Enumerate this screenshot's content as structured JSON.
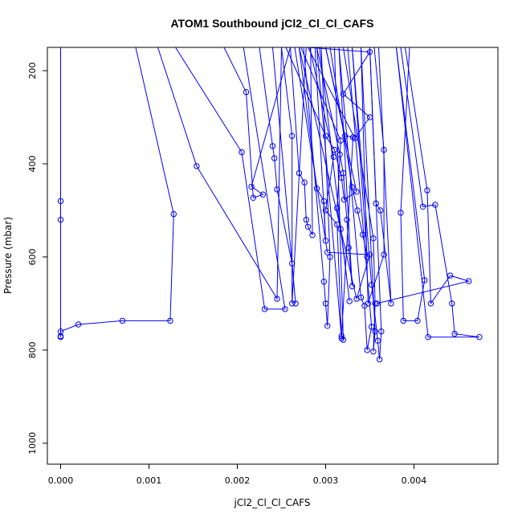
{
  "chart_data": {
    "type": "scatter",
    "title": "ATOM1 Southbound jCl2_Cl_Cl_CAFS",
    "xlabel": "jCl2_Cl_Cl_CAFS",
    "ylabel": "Pressure (mbar)",
    "xlim": [
      -0.00015,
      0.00495
    ],
    "ylim": [
      1045,
      150
    ],
    "y_reversed": true,
    "grid": false,
    "legend": "none",
    "x_ticks": [
      0,
      0.001,
      0.002,
      0.003,
      0.004
    ],
    "x_tick_labels": [
      "0.000",
      "0.001",
      "0.002",
      "0.003",
      "0.004"
    ],
    "y_ticks": [
      200,
      400,
      600,
      800,
      1000
    ],
    "y_tick_labels": [
      "200",
      "400",
      "600",
      "800",
      "1000"
    ],
    "series_color": "#0000ff",
    "series": [
      {
        "values": [
          [
            0.0,
            150
          ],
          [
            0.0,
            770
          ],
          [
            0.0,
            760
          ],
          [
            0.0002,
            745
          ],
          [
            0.0007,
            737
          ],
          [
            0.00124,
            737
          ],
          [
            0.00128,
            508
          ],
          [
            0.00085,
            150
          ]
        ]
      },
      {
        "values": [
          [
            0.0,
            150
          ],
          [
            0.0,
            480
          ],
          [
            0.0,
            520
          ],
          [
            0.0,
            772
          ]
        ]
      },
      {
        "values": [
          [
            0.0011,
            150
          ],
          [
            0.00154,
            405
          ],
          [
            0.00245,
            690
          ],
          [
            0.0025,
            150
          ]
        ]
      },
      {
        "values": [
          [
            0.0013,
            150
          ],
          [
            0.00205,
            375
          ],
          [
            0.00231,
            712
          ],
          [
            0.00254,
            712
          ],
          [
            0.00207,
            150
          ]
        ]
      },
      {
        "values": [
          [
            0.00185,
            150
          ],
          [
            0.0021,
            246
          ],
          [
            0.00218,
            473
          ],
          [
            0.00229,
            466
          ],
          [
            0.00216,
            449
          ],
          [
            0.0026,
            150
          ]
        ]
      },
      {
        "values": [
          [
            0.00225,
            150
          ],
          [
            0.0024,
            362
          ],
          [
            0.00242,
            388
          ],
          [
            0.00245,
            455
          ],
          [
            0.00262,
            614
          ],
          [
            0.00266,
            700
          ],
          [
            0.0024,
            150
          ]
        ]
      },
      {
        "values": [
          [
            0.0025,
            150
          ],
          [
            0.00262,
            340
          ],
          [
            0.00262,
            700
          ],
          [
            0.00278,
            150
          ]
        ]
      },
      {
        "values": [
          [
            0.0026,
            150
          ],
          [
            0.0027,
            420
          ],
          [
            0.00276,
            440
          ],
          [
            0.00278,
            520
          ],
          [
            0.0028,
            535
          ],
          [
            0.00285,
            553
          ],
          [
            0.00283,
            150
          ]
        ]
      },
      {
        "values": [
          [
            0.0027,
            150
          ],
          [
            0.0029,
            453
          ],
          [
            0.00298,
            480
          ],
          [
            0.003,
            565
          ],
          [
            0.00288,
            150
          ]
        ]
      },
      {
        "values": [
          [
            0.00255,
            150
          ],
          [
            0.003,
            340
          ],
          [
            0.0031,
            370
          ],
          [
            0.00318,
            430
          ],
          [
            0.00321,
            477
          ],
          [
            0.00335,
            460
          ],
          [
            0.003,
            150
          ]
        ]
      },
      {
        "values": [
          [
            0.00275,
            150
          ],
          [
            0.00298,
            653
          ],
          [
            0.003,
            700
          ],
          [
            0.00302,
            748
          ],
          [
            0.00305,
            600
          ],
          [
            0.00295,
            150
          ]
        ]
      },
      {
        "values": [
          [
            0.0029,
            150
          ],
          [
            0.00316,
            380
          ],
          [
            0.0032,
            420
          ],
          [
            0.00324,
            520
          ],
          [
            0.00326,
            580
          ],
          [
            0.0033,
            663
          ],
          [
            0.00315,
            150
          ]
        ]
      },
      {
        "values": [
          [
            0.003,
            150
          ],
          [
            0.00322,
            340
          ],
          [
            0.00331,
            343
          ],
          [
            0.00318,
            770
          ],
          [
            0.0032,
            778
          ],
          [
            0.0031,
            150
          ]
        ]
      },
      {
        "values": [
          [
            0.00305,
            150
          ],
          [
            0.0033,
            450
          ],
          [
            0.00336,
            500
          ],
          [
            0.00342,
            552
          ],
          [
            0.00347,
            600
          ],
          [
            0.0033,
            150
          ]
        ]
      },
      {
        "values": [
          [
            0.00315,
            150
          ],
          [
            0.0034,
            687
          ],
          [
            0.00344,
            705
          ],
          [
            0.00347,
            800
          ],
          [
            0.00352,
            750
          ],
          [
            0.00325,
            150
          ]
        ]
      },
      {
        "values": [
          [
            0.0032,
            150
          ],
          [
            0.00354,
            560
          ],
          [
            0.00356,
            700
          ],
          [
            0.00354,
            803
          ],
          [
            0.00356,
            760
          ],
          [
            0.0034,
            150
          ]
        ]
      },
      {
        "values": [
          [
            0.0033,
            150
          ],
          [
            0.00352,
            660
          ],
          [
            0.00359,
            780
          ],
          [
            0.00361,
            820
          ],
          [
            0.00363,
            760
          ],
          [
            0.0035,
            150
          ]
        ]
      },
      {
        "values": [
          [
            0.0035,
            150
          ],
          [
            0.00357,
            485
          ],
          [
            0.00362,
            500
          ],
          [
            0.00374,
            700
          ],
          [
            0.0036,
            150
          ]
        ]
      },
      {
        "values": [
          [
            0.00355,
            150
          ],
          [
            0.00366,
            370
          ],
          [
            0.00366,
            595
          ],
          [
            0.00348,
            700
          ],
          [
            0.0034,
            150
          ]
        ]
      },
      {
        "values": [
          [
            0.00395,
            150
          ],
          [
            0.00385,
            505
          ],
          [
            0.00388,
            737
          ],
          [
            0.00404,
            737
          ],
          [
            0.00412,
            650
          ],
          [
            0.0038,
            150
          ]
        ]
      },
      {
        "values": [
          [
            0.0039,
            150
          ],
          [
            0.00415,
            457
          ],
          [
            0.00419,
            700
          ],
          [
            0.00441,
            640
          ],
          [
            0.00462,
            652
          ],
          [
            0.00358,
            700
          ]
        ]
      },
      {
        "values": [
          [
            0.00385,
            150
          ],
          [
            0.0041,
            492
          ],
          [
            0.00424,
            488
          ],
          [
            0.00443,
            700
          ],
          [
            0.00446,
            765
          ],
          [
            0.00474,
            772
          ],
          [
            0.00416,
            772
          ],
          [
            0.0038,
            150
          ]
        ]
      },
      {
        "values": [
          [
            0.0028,
            150
          ],
          [
            0.0035,
            160
          ],
          [
            0.0032,
            250
          ],
          [
            0.0035,
            300
          ],
          [
            0.00333,
            345
          ],
          [
            0.0028,
            150
          ]
        ]
      },
      {
        "values": [
          [
            0.00265,
            150
          ],
          [
            0.00302,
            590
          ],
          [
            0.0035,
            595
          ],
          [
            0.00335,
            690
          ],
          [
            0.0027,
            150
          ]
        ]
      },
      {
        "values": [
          [
            0.00272,
            150
          ],
          [
            0.00317,
            350
          ],
          [
            0.00313,
            495
          ],
          [
            0.00317,
            540
          ],
          [
            0.00327,
            695
          ],
          [
            0.00293,
            150
          ]
        ]
      },
      {
        "values": [
          [
            0.00282,
            150
          ],
          [
            0.00309,
            385
          ],
          [
            0.003,
            500
          ],
          [
            0.00313,
            530
          ],
          [
            0.00318,
            775
          ],
          [
            0.0029,
            150
          ]
        ]
      }
    ]
  }
}
